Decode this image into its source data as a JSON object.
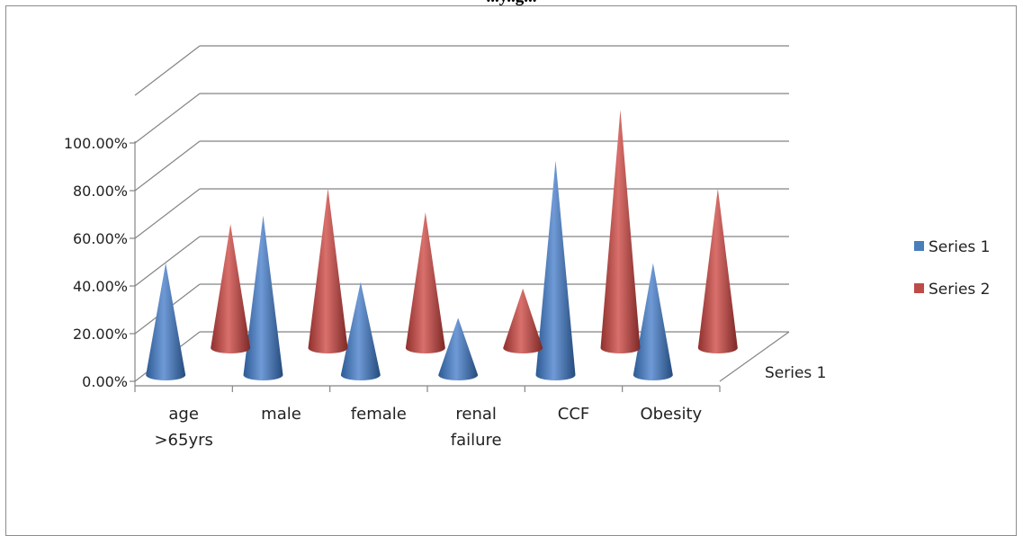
{
  "chart_data": {
    "type": "bar",
    "bar_shape": "cone-3d",
    "title": "...y..g...",
    "categories": [
      "age >65yrs",
      "male",
      "female",
      "renal failure",
      "CCF",
      "Obesity"
    ],
    "series": [
      {
        "name": "Series 1",
        "values": [
          0.47,
          0.67,
          0.39,
          0.24,
          0.9,
          0.47
        ]
      },
      {
        "name": "Series 2",
        "values": [
          0.52,
          0.67,
          0.57,
          0.25,
          1.0,
          0.67
        ]
      }
    ],
    "depth_axis_label": "Series 1",
    "yticks": [
      "0.00%",
      "20.00%",
      "40.00%",
      "60.00%",
      "80.00%",
      "100.00%"
    ],
    "ylim": [
      0,
      1.2
    ],
    "grid": true,
    "legend": "right",
    "colors": {
      "Series 1": "#4a7ebb",
      "Series 2": "#be4b48"
    }
  }
}
